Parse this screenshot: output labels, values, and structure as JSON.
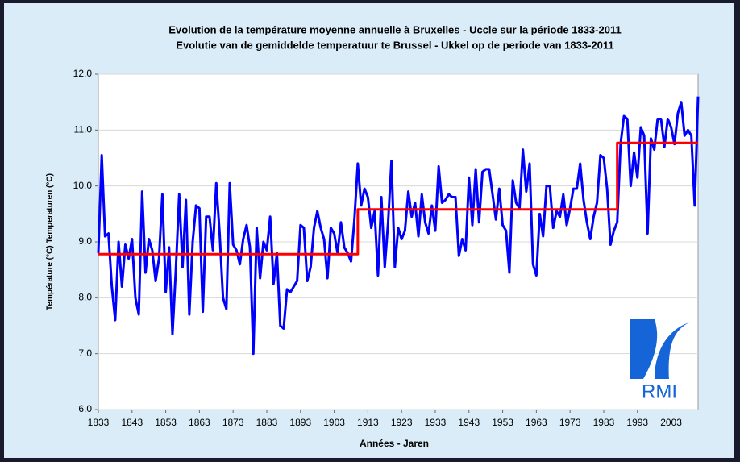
{
  "chart_data": {
    "type": "line",
    "title": "Evolution de la température moyenne annuelle à Bruxelles - Uccle sur la période 1833-2011",
    "subtitle": "Evolutie van de gemiddelde temperatuur te Brussel - Ukkel op de periode van 1833-2011",
    "xlabel": "Années - Jaren",
    "ylabel": "Température (°C) Temperaturen (°C)",
    "logo": "RMI",
    "grid": true,
    "xlim": [
      1833,
      2011
    ],
    "xticks": [
      1833,
      1843,
      1853,
      1863,
      1873,
      1883,
      1893,
      1903,
      1913,
      1923,
      1933,
      1943,
      1953,
      1963,
      1973,
      1983,
      1993,
      2003
    ],
    "ylim": [
      6,
      12
    ],
    "yticks": [
      {
        "value": 6,
        "label": "6.0"
      },
      {
        "value": 7,
        "label": "7.0"
      },
      {
        "value": 8,
        "label": "8.0"
      },
      {
        "value": 9,
        "label": "9.0"
      },
      {
        "value": 10,
        "label": "10.0"
      },
      {
        "value": 11,
        "label": "11.0"
      },
      {
        "value": 12,
        "label": "12.0"
      }
    ],
    "x": [
      1833,
      1834,
      1835,
      1836,
      1837,
      1838,
      1839,
      1840,
      1841,
      1842,
      1843,
      1844,
      1845,
      1846,
      1847,
      1848,
      1849,
      1850,
      1851,
      1852,
      1853,
      1854,
      1855,
      1856,
      1857,
      1858,
      1859,
      1860,
      1861,
      1862,
      1863,
      1864,
      1865,
      1866,
      1867,
      1868,
      1869,
      1870,
      1871,
      1872,
      1873,
      1874,
      1875,
      1876,
      1877,
      1878,
      1879,
      1880,
      1881,
      1882,
      1883,
      1884,
      1885,
      1886,
      1887,
      1888,
      1889,
      1890,
      1891,
      1892,
      1893,
      1894,
      1895,
      1896,
      1897,
      1898,
      1899,
      1900,
      1901,
      1902,
      1903,
      1904,
      1905,
      1906,
      1907,
      1908,
      1909,
      1910,
      1911,
      1912,
      1913,
      1914,
      1915,
      1916,
      1917,
      1918,
      1919,
      1920,
      1921,
      1922,
      1923,
      1924,
      1925,
      1926,
      1927,
      1928,
      1929,
      1930,
      1931,
      1932,
      1933,
      1934,
      1935,
      1936,
      1937,
      1938,
      1939,
      1940,
      1941,
      1942,
      1943,
      1944,
      1945,
      1946,
      1947,
      1948,
      1949,
      1950,
      1951,
      1952,
      1953,
      1954,
      1955,
      1956,
      1957,
      1958,
      1959,
      1960,
      1961,
      1962,
      1963,
      1964,
      1965,
      1966,
      1967,
      1968,
      1969,
      1970,
      1971,
      1972,
      1973,
      1974,
      1975,
      1976,
      1977,
      1978,
      1979,
      1980,
      1981,
      1982,
      1983,
      1984,
      1985,
      1986,
      1987,
      1988,
      1989,
      1990,
      1991,
      1992,
      1993,
      1994,
      1995,
      1996,
      1997,
      1998,
      1999,
      2000,
      2001,
      2002,
      2003,
      2004,
      2005,
      2006,
      2007,
      2008,
      2009,
      2010,
      2011
    ],
    "series": [
      {
        "color": "#0000ff",
        "values": [
          8.8,
          10.55,
          9.1,
          9.15,
          8.2,
          7.6,
          9.0,
          8.2,
          8.95,
          8.7,
          9.05,
          8.0,
          7.7,
          9.9,
          8.45,
          9.05,
          8.85,
          8.3,
          8.7,
          9.85,
          8.1,
          8.9,
          7.35,
          8.5,
          9.85,
          8.55,
          9.75,
          7.7,
          9.0,
          9.65,
          9.6,
          7.75,
          9.45,
          9.45,
          8.85,
          10.05,
          9.15,
          8.0,
          7.8,
          10.05,
          8.95,
          8.85,
          8.6,
          9.05,
          9.3,
          8.9,
          7.0,
          9.25,
          8.35,
          9.0,
          8.85,
          9.45,
          8.25,
          8.8,
          7.5,
          7.45,
          8.15,
          8.1,
          8.2,
          8.3,
          9.3,
          9.25,
          8.3,
          8.55,
          9.25,
          9.55,
          9.25,
          9.05,
          8.35,
          9.25,
          9.15,
          8.8,
          9.35,
          8.9,
          8.8,
          8.65,
          9.4,
          10.4,
          9.65,
          9.95,
          9.8,
          9.25,
          9.55,
          8.4,
          9.8,
          8.55,
          9.35,
          10.45,
          8.55,
          9.25,
          9.05,
          9.2,
          9.9,
          9.45,
          9.7,
          9.1,
          9.85,
          9.35,
          9.15,
          9.65,
          9.2,
          10.35,
          9.7,
          9.75,
          9.85,
          9.8,
          9.8,
          8.75,
          9.05,
          8.85,
          10.15,
          9.3,
          10.3,
          9.35,
          10.25,
          10.3,
          10.3,
          9.85,
          9.4,
          9.95,
          9.3,
          9.2,
          8.45,
          10.1,
          9.7,
          9.6,
          10.65,
          9.9,
          10.4,
          8.6,
          8.4,
          9.5,
          9.1,
          10.0,
          10.0,
          9.25,
          9.55,
          9.45,
          9.85,
          9.3,
          9.6,
          9.95,
          9.95,
          10.4,
          9.75,
          9.35,
          9.05,
          9.45,
          9.7,
          10.55,
          10.5,
          9.95,
          8.95,
          9.2,
          9.35,
          10.75,
          11.25,
          11.2,
          10.0,
          10.6,
          10.15,
          11.05,
          10.9,
          9.15,
          10.85,
          10.65,
          11.2,
          11.2,
          10.7,
          11.2,
          11.05,
          10.75,
          11.3,
          11.5,
          10.9,
          11.0,
          10.9,
          9.65,
          11.6
        ]
      },
      {
        "color": "#ff0000",
        "x": [
          1833,
          1910,
          1910,
          1987,
          1987,
          2011
        ],
        "values": [
          8.78,
          8.78,
          9.58,
          9.58,
          10.77,
          10.77
        ]
      }
    ]
  }
}
